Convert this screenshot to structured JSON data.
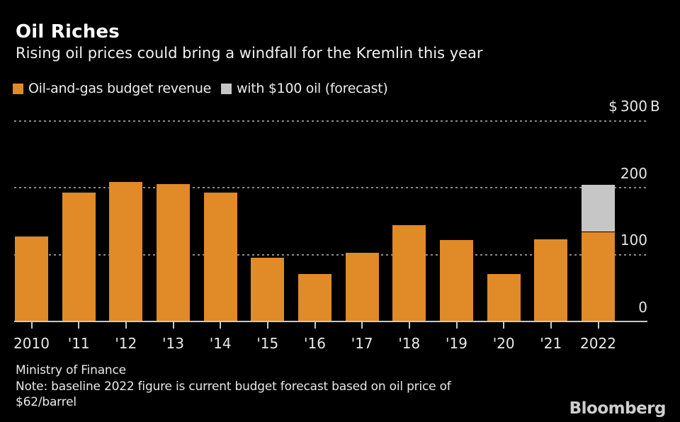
{
  "header": {
    "title": "Oil Riches",
    "subtitle": "Rising oil prices could bring a windfall for the Kremlin this year"
  },
  "legend": [
    {
      "label": "Oil-and-gas budget revenue",
      "color": "#e08a28"
    },
    {
      "label": "with $100 oil (forecast)",
      "color": "#c6c6c6"
    }
  ],
  "chart_data": {
    "type": "bar",
    "stacked": true,
    "title": "Oil Riches",
    "xlabel": "",
    "ylabel": "Oil-and-gas budget revenue, $B",
    "ylim": [
      0,
      300
    ],
    "grid": "horizontal dashed gridlines at 100, 200, 300; solid baseline at 0",
    "legend_position": "top-left",
    "categories": [
      "2010",
      "'11",
      "'12",
      "'13",
      "'14",
      "'15",
      "'16",
      "'17",
      "'18",
      "'19",
      "'20",
      "'21",
      "2022"
    ],
    "series": [
      {
        "name": "Oil-and-gas budget revenue",
        "color": "#e08a28",
        "values": [
          127,
          193,
          209,
          206,
          193,
          95,
          71,
          103,
          144,
          122,
          71,
          123,
          134
        ]
      },
      {
        "name": "with $100 oil (forecast)",
        "color": "#c6c6c6",
        "values": [
          0,
          0,
          0,
          0,
          0,
          0,
          0,
          0,
          0,
          0,
          0,
          0,
          70
        ]
      }
    ],
    "y_ticks": [
      {
        "value": 0,
        "label": "0",
        "prefix": "",
        "suffix": ""
      },
      {
        "value": 100,
        "label": "100",
        "prefix": "",
        "suffix": ""
      },
      {
        "value": 200,
        "label": "200",
        "prefix": "",
        "suffix": ""
      },
      {
        "value": 300,
        "label": "300",
        "prefix": "$",
        "suffix": "B"
      }
    ]
  },
  "footer": {
    "source": "Ministry of Finance",
    "note_lines": [
      "Note: baseline 2022 figure is current budget forecast based on oil price of",
      "$62/barrel"
    ],
    "brand": "Bloomberg"
  }
}
